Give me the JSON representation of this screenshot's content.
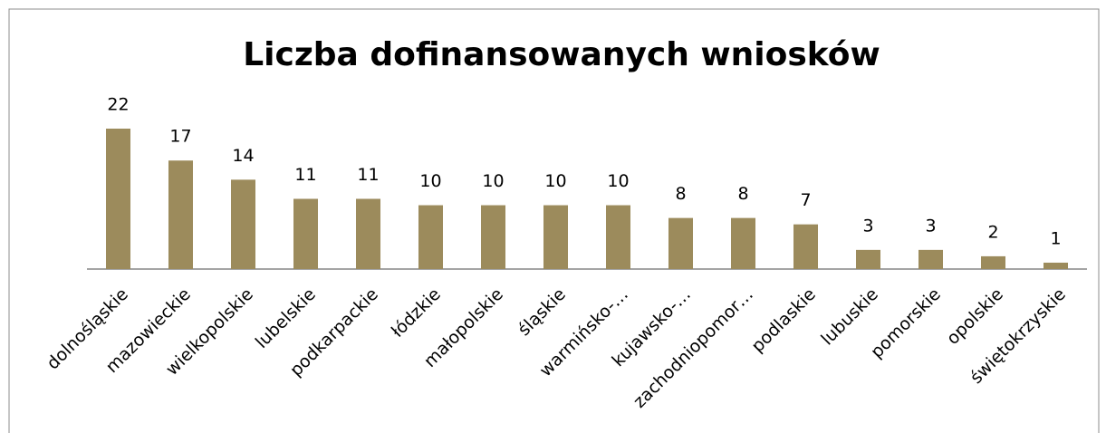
{
  "chart_data": {
    "type": "bar",
    "title": "Liczba dofinansowanych wniosków",
    "categories": [
      "dolnośląskie",
      "mazowieckie",
      "wielkopolskie",
      "lubelskie",
      "podkarpackie",
      "łódzkie",
      "małopolskie",
      "śląskie",
      "warmińsko-…",
      "kujawsko-…",
      "zachodniopomor…",
      "podlaskie",
      "lubuskie",
      "pomorskie",
      "opolskie",
      "świętokrzyskie"
    ],
    "values": [
      22,
      17,
      14,
      11,
      11,
      10,
      10,
      10,
      10,
      8,
      8,
      7,
      3,
      3,
      2,
      1
    ],
    "color": "#9c8b5c",
    "ylim": [
      0,
      22
    ]
  }
}
